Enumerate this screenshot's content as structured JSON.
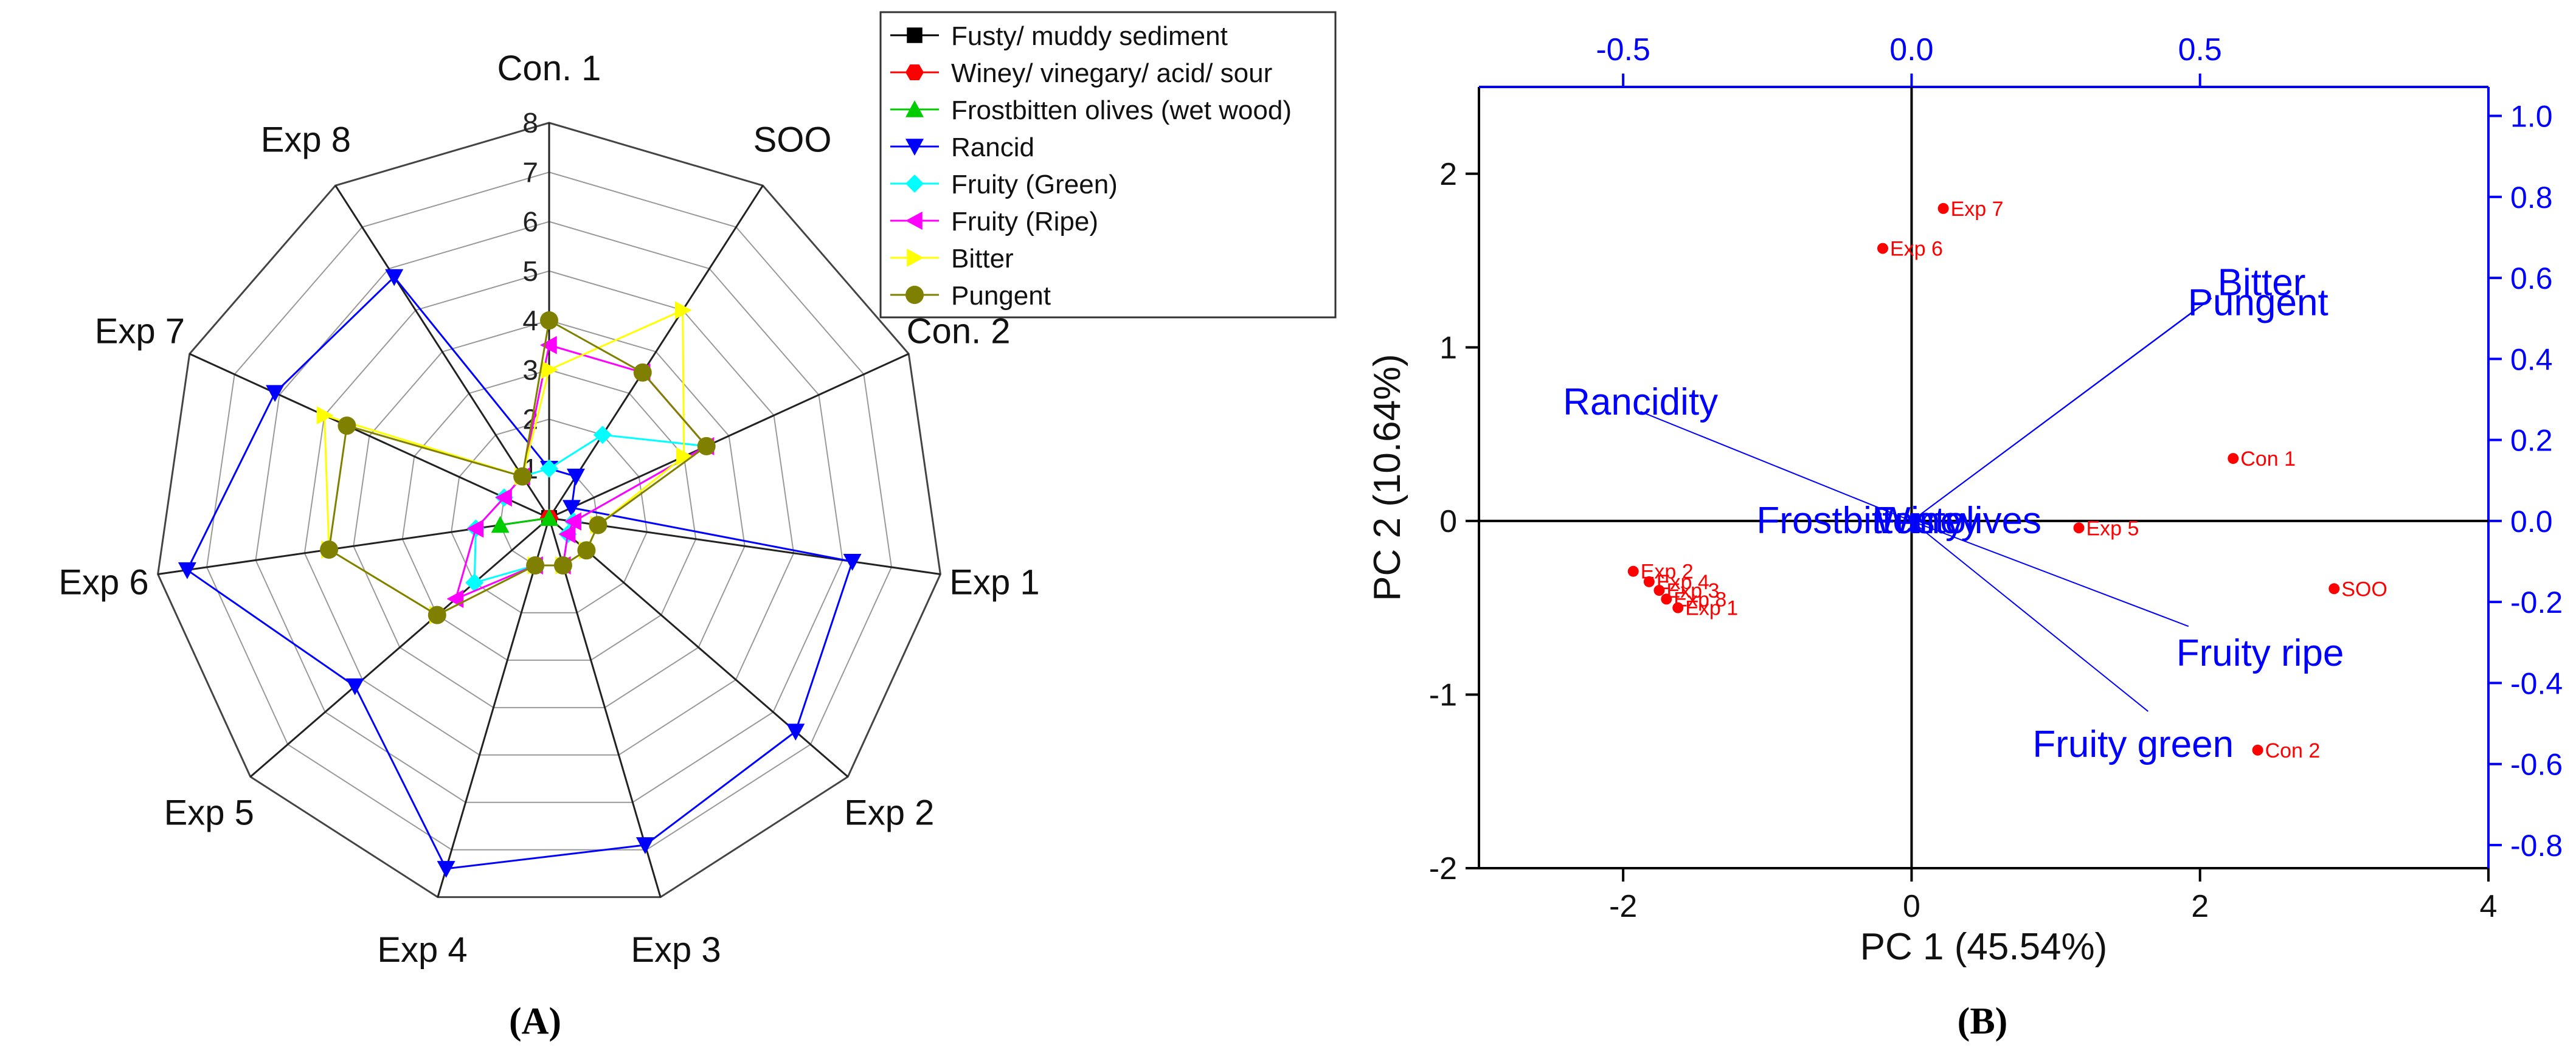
{
  "chart_data": [
    {
      "panel_label": "(A)",
      "type": "radar",
      "axes": [
        "Con. 1",
        "SOO",
        "Con. 2",
        "Exp 1",
        "Exp 2",
        "Exp 3",
        "Exp 4",
        "Exp 5",
        "Exp 6",
        "Exp 7",
        "Exp 8"
      ],
      "rlim": [
        0,
        8
      ],
      "rticks": [
        "1",
        "2",
        "3",
        "4",
        "5",
        "6",
        "7",
        "8"
      ],
      "legend_position": "top-right",
      "series": [
        {
          "name": "Fusty/ muddy sediment",
          "color": "#000000",
          "marker": "square",
          "values": [
            0,
            0,
            0,
            0,
            0,
            0,
            0,
            0,
            0,
            0,
            0
          ]
        },
        {
          "name": "Winey/ vinegary/ acid/ sour",
          "color": "#ff0000",
          "marker": "hexagon",
          "values": [
            0,
            0,
            0,
            0,
            0,
            0,
            0,
            0,
            0,
            0,
            0
          ]
        },
        {
          "name": "Frostbitten olives (wet wood)",
          "color": "#00cc00",
          "marker": "triangle-up",
          "values": [
            0,
            0,
            0,
            0,
            0,
            0,
            0,
            0,
            1,
            0,
            0
          ]
        },
        {
          "name": "Rancid",
          "color": "#0000ff",
          "marker": "triangle-down",
          "values": [
            1,
            1,
            0.5,
            6.2,
            6.6,
            6.9,
            7.4,
            5.2,
            7.4,
            6.1,
            5.8
          ]
        },
        {
          "name": "Fruity (Green)",
          "color": "#00ffff",
          "marker": "diamond",
          "values": [
            1,
            2,
            3.5,
            0.5,
            0.5,
            1,
            1,
            2,
            1.5,
            1,
            1
          ]
        },
        {
          "name": "Fruity (Ripe)",
          "color": "#ff00ff",
          "marker": "triangle-left",
          "values": [
            3.5,
            3.5,
            3.5,
            0.5,
            0.5,
            1,
            1,
            2.5,
            1.5,
            1,
            1
          ]
        },
        {
          "name": "Bitter",
          "color": "#ffff00",
          "marker": "triangle-right",
          "values": [
            3,
            5,
            3,
            1,
            1,
            1,
            1,
            3,
            4.5,
            5,
            1
          ]
        },
        {
          "name": "Pungent",
          "color": "#808000",
          "marker": "circle",
          "values": [
            4,
            3.5,
            3.5,
            1,
            1,
            1,
            1,
            3,
            4.5,
            4.5,
            1
          ]
        }
      ]
    },
    {
      "panel_label": "(B)",
      "type": "biplot",
      "xlabel": "PC 1 (45.54%)",
      "ylabel": "PC 2 (10.64%)",
      "xlim": [
        -3,
        4
      ],
      "ylim": [
        -2,
        2.5
      ],
      "xticks": [
        -2,
        0,
        2,
        4
      ],
      "xtick_labels": [
        "-2",
        "0",
        "2",
        "4"
      ],
      "yticks": [
        -2,
        -1,
        0,
        1,
        2
      ],
      "ytick_labels": [
        "-2",
        "-1",
        "0",
        "1",
        "2"
      ],
      "top_axis": {
        "range": [
          -0.75,
          1.0
        ],
        "ticks": [
          -0.5,
          0,
          0.5
        ],
        "tick_labels": [
          "-0.5",
          "0.0",
          "0.5"
        ],
        "color": "#0000ff"
      },
      "right_axis": {
        "range": [
          -0.8571,
          1.0714
        ],
        "ticks": [
          -0.8,
          -0.6,
          -0.4,
          -0.2,
          0,
          0.2,
          0.4,
          0.6,
          0.8,
          1.0
        ],
        "tick_labels": [
          "-0.8",
          "-0.6",
          "-0.4",
          "-0.2",
          "0.0",
          "0.2",
          "0.4",
          "0.6",
          "0.8",
          "1.0"
        ],
        "color": "#0000ff"
      },
      "scores": [
        {
          "label": "Exp 7",
          "x": 0.22,
          "y": 1.8
        },
        {
          "label": "Exp 6",
          "x": -0.2,
          "y": 1.57
        },
        {
          "label": "Con 1",
          "x": 2.23,
          "y": 0.36
        },
        {
          "label": "Exp 5",
          "x": 1.16,
          "y": -0.04
        },
        {
          "label": "SOO",
          "x": 2.93,
          "y": -0.39
        },
        {
          "label": "Con 2",
          "x": 2.4,
          "y": -1.32
        },
        {
          "label": "Exp 2",
          "x": -1.93,
          "y": -0.29
        },
        {
          "label": "Exp 4",
          "x": -1.82,
          "y": -0.35
        },
        {
          "label": "Exp 3",
          "x": -1.75,
          "y": -0.4
        },
        {
          "label": "Exp 8",
          "x": -1.7,
          "y": -0.45
        },
        {
          "label": "Exp 1",
          "x": -1.62,
          "y": -0.5
        }
      ],
      "loadings": [
        {
          "label": "Bitter",
          "x": 0.52,
          "y": 0.55
        },
        {
          "label": "Pungent",
          "x": 0.5,
          "y": 0.53
        },
        {
          "label": "Rancidity",
          "x": -0.47,
          "y": 0.27
        },
        {
          "label": "Frostbitten olives",
          "x": 0.0,
          "y": 0.0
        },
        {
          "label": "Fusty",
          "x": 0.0,
          "y": 0.0
        },
        {
          "label": "Winey",
          "x": 0.0,
          "y": 0.0
        },
        {
          "label": "Fruity ripe",
          "x": 0.48,
          "y": -0.26
        },
        {
          "label": "Fruity green",
          "x": 0.41,
          "y": -0.47
        }
      ]
    }
  ]
}
